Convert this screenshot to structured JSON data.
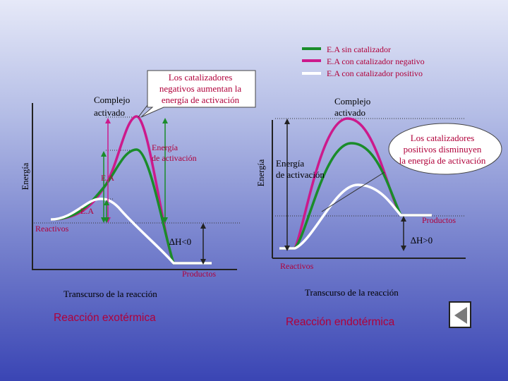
{
  "legend": {
    "items": [
      {
        "label": "E.A sin catalizador",
        "color": "#1a8c2a"
      },
      {
        "label": "E.A con catalizador negativo",
        "color": "#cc1a8c"
      },
      {
        "label": "E.A con catalizador positivo",
        "color": "#ffffff"
      }
    ]
  },
  "left": {
    "complejo_line1": "Complejo",
    "complejo_line2": "activado",
    "callout_line1": "Los catalizadores",
    "callout_line2": "negativos aumentan la",
    "callout_line3": "energía de activación",
    "energia_act_line1": "Energía",
    "energia_act_line2": "de activación",
    "ea_upper": "E.A",
    "ea_lower": "E.A",
    "reactivos": "Reactivos",
    "delta_h": "∆H<0",
    "productos": "Productos",
    "axis_y": "Energía",
    "axis_x": "Transcurso de la reacción",
    "title": "Reacción exotérmica"
  },
  "right": {
    "complejo_line1": "Complejo",
    "complejo_line2": "activado",
    "callout_line1": "Los catalizadores",
    "callout_line2": "positivos disminuyen",
    "callout_line3": "la energía de activación",
    "energia_act_line1": "Energía",
    "energia_act_line2": "de activación",
    "productos": "Productos",
    "delta_h": "∆H>0",
    "reactivos": "Reactivos",
    "axis_y": "Energía",
    "axis_x": "Transcurso de la reacción",
    "title": "Reacción endotérmica"
  },
  "colors": {
    "green": "#1a8c2a",
    "magenta": "#cc1a8c",
    "white": "#ffffff",
    "red_text": "#b0003a"
  },
  "nav": {
    "back_icon": "left-triangle-icon"
  }
}
